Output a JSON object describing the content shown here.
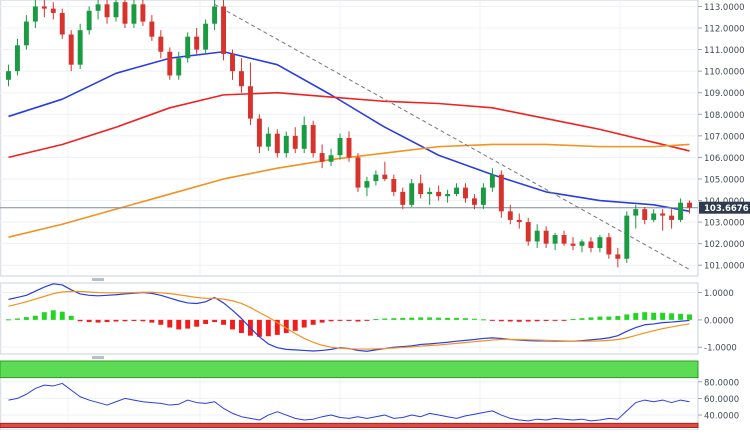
{
  "chart_data": [
    {
      "panel": "price",
      "type": "candlestick",
      "ylim": [
        100.5,
        113.3
      ],
      "y_ticks": [
        "113.0000",
        "112.0000",
        "111.0000",
        "110.0000",
        "109.0000",
        "108.0000",
        "107.0000",
        "106.0000",
        "105.0000",
        "104.0000",
        "103.0000",
        "102.0000",
        "101.0000"
      ],
      "y_tick_values": [
        113,
        112,
        111,
        110,
        109,
        108,
        107,
        106,
        105,
        104,
        103,
        102,
        101
      ],
      "current_price_label": "103.6676",
      "current_price": 103.6676,
      "grid": true,
      "candles": [
        {
          "o": 109.6,
          "h": 110.3,
          "l": 109.3,
          "c": 110.0
        },
        {
          "o": 110.0,
          "h": 111.5,
          "l": 109.8,
          "c": 111.2
        },
        {
          "o": 111.2,
          "h": 112.6,
          "l": 111.0,
          "c": 112.3
        },
        {
          "o": 112.3,
          "h": 113.3,
          "l": 112.0,
          "c": 113.0
        },
        {
          "o": 113.0,
          "h": 113.3,
          "l": 112.5,
          "c": 112.9
        },
        {
          "o": 112.9,
          "h": 113.2,
          "l": 112.4,
          "c": 112.7
        },
        {
          "o": 112.7,
          "h": 112.9,
          "l": 111.5,
          "c": 111.7
        },
        {
          "o": 111.7,
          "h": 111.9,
          "l": 110.0,
          "c": 110.3
        },
        {
          "o": 110.3,
          "h": 112.2,
          "l": 110.1,
          "c": 111.9
        },
        {
          "o": 111.9,
          "h": 113.0,
          "l": 111.7,
          "c": 112.8
        },
        {
          "o": 112.8,
          "h": 113.3,
          "l": 112.4,
          "c": 113.1
        },
        {
          "o": 113.1,
          "h": 113.3,
          "l": 112.2,
          "c": 112.5
        },
        {
          "o": 112.5,
          "h": 113.3,
          "l": 112.3,
          "c": 113.2
        },
        {
          "o": 113.2,
          "h": 113.3,
          "l": 112.0,
          "c": 112.2
        },
        {
          "o": 112.2,
          "h": 113.3,
          "l": 112.0,
          "c": 113.1
        },
        {
          "o": 113.1,
          "h": 113.3,
          "l": 112.1,
          "c": 112.3
        },
        {
          "o": 112.3,
          "h": 112.6,
          "l": 111.4,
          "c": 111.6
        },
        {
          "o": 111.6,
          "h": 111.9,
          "l": 110.6,
          "c": 110.9
        },
        {
          "o": 110.9,
          "h": 111.1,
          "l": 109.6,
          "c": 109.8
        },
        {
          "o": 109.8,
          "h": 110.9,
          "l": 109.6,
          "c": 110.6
        },
        {
          "o": 110.6,
          "h": 111.8,
          "l": 110.4,
          "c": 111.6
        },
        {
          "o": 111.6,
          "h": 112.0,
          "l": 110.8,
          "c": 111.0
        },
        {
          "o": 111.0,
          "h": 112.4,
          "l": 110.8,
          "c": 112.2
        },
        {
          "o": 112.2,
          "h": 113.3,
          "l": 111.9,
          "c": 113.0
        },
        {
          "o": 113.0,
          "h": 113.3,
          "l": 110.5,
          "c": 110.8
        },
        {
          "o": 110.8,
          "h": 111.0,
          "l": 109.6,
          "c": 110.0
        },
        {
          "o": 110.0,
          "h": 110.6,
          "l": 109.0,
          "c": 109.3
        },
        {
          "o": 109.3,
          "h": 110.4,
          "l": 107.5,
          "c": 107.8
        },
        {
          "o": 107.8,
          "h": 108.0,
          "l": 106.2,
          "c": 106.5
        },
        {
          "o": 106.5,
          "h": 107.4,
          "l": 106.3,
          "c": 107.1
        },
        {
          "o": 107.1,
          "h": 107.3,
          "l": 106.0,
          "c": 106.2
        },
        {
          "o": 106.2,
          "h": 107.2,
          "l": 106.0,
          "c": 107.0
        },
        {
          "o": 107.0,
          "h": 107.4,
          "l": 106.2,
          "c": 106.4
        },
        {
          "o": 106.4,
          "h": 107.9,
          "l": 106.2,
          "c": 107.5
        },
        {
          "o": 107.5,
          "h": 107.7,
          "l": 106.0,
          "c": 106.2
        },
        {
          "o": 106.2,
          "h": 106.6,
          "l": 105.5,
          "c": 105.8
        },
        {
          "o": 105.8,
          "h": 106.4,
          "l": 105.6,
          "c": 106.1
        },
        {
          "o": 106.1,
          "h": 107.1,
          "l": 105.9,
          "c": 106.9
        },
        {
          "o": 106.9,
          "h": 107.2,
          "l": 105.8,
          "c": 106.0
        },
        {
          "o": 106.0,
          "h": 106.2,
          "l": 104.4,
          "c": 104.6
        },
        {
          "o": 104.6,
          "h": 105.1,
          "l": 104.2,
          "c": 104.9
        },
        {
          "o": 104.9,
          "h": 105.4,
          "l": 104.7,
          "c": 105.2
        },
        {
          "o": 105.2,
          "h": 105.8,
          "l": 104.9,
          "c": 105.0
        },
        {
          "o": 105.0,
          "h": 105.2,
          "l": 104.2,
          "c": 104.4
        },
        {
          "o": 104.4,
          "h": 104.6,
          "l": 103.6,
          "c": 103.8
        },
        {
          "o": 103.8,
          "h": 105.0,
          "l": 103.7,
          "c": 104.8
        },
        {
          "o": 104.8,
          "h": 105.2,
          "l": 104.1,
          "c": 104.3
        },
        {
          "o": 104.3,
          "h": 104.6,
          "l": 103.8,
          "c": 104.4
        },
        {
          "o": 104.4,
          "h": 104.7,
          "l": 104.0,
          "c": 104.2
        },
        {
          "o": 104.2,
          "h": 104.5,
          "l": 103.9,
          "c": 104.3
        },
        {
          "o": 104.3,
          "h": 104.8,
          "l": 104.2,
          "c": 104.6
        },
        {
          "o": 104.6,
          "h": 104.8,
          "l": 103.9,
          "c": 104.1
        },
        {
          "o": 104.1,
          "h": 104.3,
          "l": 103.6,
          "c": 103.8
        },
        {
          "o": 103.8,
          "h": 104.8,
          "l": 103.6,
          "c": 104.6
        },
        {
          "o": 104.6,
          "h": 105.5,
          "l": 104.4,
          "c": 105.2
        },
        {
          "o": 105.2,
          "h": 105.4,
          "l": 103.2,
          "c": 103.5
        },
        {
          "o": 103.5,
          "h": 103.8,
          "l": 102.9,
          "c": 103.1
        },
        {
          "o": 103.1,
          "h": 103.4,
          "l": 102.7,
          "c": 103.0
        },
        {
          "o": 103.0,
          "h": 103.2,
          "l": 101.9,
          "c": 102.1
        },
        {
          "o": 102.1,
          "h": 102.9,
          "l": 101.8,
          "c": 102.6
        },
        {
          "o": 102.6,
          "h": 102.8,
          "l": 101.8,
          "c": 102.0
        },
        {
          "o": 102.0,
          "h": 102.5,
          "l": 101.7,
          "c": 102.4
        },
        {
          "o": 102.4,
          "h": 102.6,
          "l": 101.9,
          "c": 102.0
        },
        {
          "o": 102.0,
          "h": 102.3,
          "l": 101.7,
          "c": 101.9
        },
        {
          "o": 101.9,
          "h": 102.2,
          "l": 101.6,
          "c": 102.1
        },
        {
          "o": 102.1,
          "h": 102.3,
          "l": 101.6,
          "c": 101.8
        },
        {
          "o": 101.8,
          "h": 102.4,
          "l": 101.6,
          "c": 102.3
        },
        {
          "o": 102.3,
          "h": 102.5,
          "l": 101.3,
          "c": 101.5
        },
        {
          "o": 101.5,
          "h": 101.8,
          "l": 100.9,
          "c": 101.3
        },
        {
          "o": 101.3,
          "h": 103.5,
          "l": 101.1,
          "c": 103.3
        },
        {
          "o": 103.3,
          "h": 103.8,
          "l": 102.7,
          "c": 103.6
        },
        {
          "o": 103.6,
          "h": 103.7,
          "l": 102.9,
          "c": 103.1
        },
        {
          "o": 103.1,
          "h": 103.6,
          "l": 103.0,
          "c": 103.4
        },
        {
          "o": 103.4,
          "h": 103.6,
          "l": 102.6,
          "c": 103.3
        },
        {
          "o": 103.3,
          "h": 103.6,
          "l": 102.7,
          "c": 103.1
        },
        {
          "o": 103.1,
          "h": 104.1,
          "l": 103.0,
          "c": 103.9
        },
        {
          "o": 103.9,
          "h": 104.0,
          "l": 103.4,
          "c": 103.67
        }
      ],
      "moving_averages": [
        {
          "name": "",
          "color": "#2a3ee0",
          "x": [
            0,
            6,
            12,
            18,
            24,
            30,
            36,
            42,
            48,
            54,
            60,
            66,
            72,
            76
          ],
          "y": [
            107.9,
            108.7,
            109.9,
            110.6,
            110.9,
            110.3,
            108.9,
            107.4,
            106.1,
            105.2,
            104.4,
            104.0,
            103.8,
            103.5
          ]
        },
        {
          "name": "",
          "color": "#f22020",
          "x": [
            0,
            6,
            12,
            18,
            24,
            30,
            36,
            42,
            48,
            54,
            60,
            66,
            72,
            76
          ],
          "y": [
            106.0,
            106.6,
            107.4,
            108.3,
            108.9,
            109.0,
            108.8,
            108.6,
            108.5,
            108.3,
            107.8,
            107.3,
            106.7,
            106.3
          ]
        },
        {
          "name": "",
          "color": "#f5911e",
          "x": [
            0,
            6,
            12,
            18,
            24,
            30,
            36,
            42,
            48,
            54,
            60,
            66,
            72,
            76
          ],
          "y": [
            102.3,
            102.9,
            103.6,
            104.3,
            105.0,
            105.5,
            105.9,
            106.2,
            106.5,
            106.6,
            106.6,
            106.5,
            106.5,
            106.6
          ]
        }
      ],
      "trendline": {
        "x": [
          23,
          76
        ],
        "y": [
          113.1,
          100.8
        ],
        "style": "dashed",
        "color": "#777777"
      },
      "horizontal_line": {
        "y": 103.6676,
        "color": "#7a8aa0"
      }
    },
    {
      "panel": "macd",
      "type": "line+bar",
      "ylim": [
        -1.25,
        1.35
      ],
      "y_ticks": [
        "1.0000",
        "0.0000",
        "-1.0000"
      ],
      "y_tick_values": [
        1,
        0,
        -1
      ],
      "grid": true,
      "histogram": [
        0.02,
        0.05,
        0.1,
        0.15,
        0.28,
        0.35,
        0.3,
        0.15,
        -0.05,
        -0.08,
        -0.1,
        -0.08,
        -0.06,
        -0.05,
        -0.04,
        -0.05,
        -0.1,
        -0.18,
        -0.28,
        -0.35,
        -0.32,
        -0.25,
        -0.15,
        -0.08,
        -0.18,
        -0.35,
        -0.48,
        -0.58,
        -0.62,
        -0.6,
        -0.55,
        -0.48,
        -0.4,
        -0.28,
        -0.18,
        -0.1,
        -0.05,
        -0.03,
        -0.04,
        -0.06,
        -0.02,
        0.03,
        0.05,
        0.06,
        0.07,
        0.08,
        0.09,
        0.09,
        0.08,
        0.07,
        0.07,
        0.06,
        0.04,
        0.02,
        -0.02,
        -0.05,
        -0.06,
        -0.07,
        -0.06,
        -0.05,
        -0.04,
        -0.03,
        -0.02,
        0.03,
        0.06,
        0.09,
        0.12,
        0.12,
        0.14,
        0.2,
        0.25,
        0.28,
        0.26,
        0.26,
        0.24,
        0.22,
        0.2
      ],
      "series": [
        {
          "name": "",
          "color": "#2a3ee0",
          "values": [
            0.75,
            0.82,
            0.9,
            1.05,
            1.2,
            1.32,
            1.28,
            1.1,
            0.95,
            0.9,
            0.88,
            0.9,
            0.92,
            0.95,
            0.98,
            1.0,
            0.97,
            0.9,
            0.8,
            0.7,
            0.62,
            0.6,
            0.66,
            0.82,
            0.62,
            0.35,
            0.05,
            -0.3,
            -0.62,
            -0.88,
            -1.02,
            -1.08,
            -1.1,
            -1.12,
            -1.14,
            -1.12,
            -1.08,
            -1.02,
            -1.05,
            -1.12,
            -1.15,
            -1.1,
            -1.05,
            -1.0,
            -0.98,
            -0.95,
            -0.9,
            -0.88,
            -0.85,
            -0.82,
            -0.78,
            -0.75,
            -0.72,
            -0.68,
            -0.66,
            -0.68,
            -0.72,
            -0.74,
            -0.76,
            -0.77,
            -0.77,
            -0.78,
            -0.78,
            -0.78,
            -0.76,
            -0.73,
            -0.7,
            -0.66,
            -0.58,
            -0.42,
            -0.28,
            -0.18,
            -0.15,
            -0.1,
            -0.08,
            -0.05,
            -0.02
          ]
        },
        {
          "name": "",
          "color": "#f5911e",
          "values": [
            0.5,
            0.58,
            0.66,
            0.76,
            0.86,
            0.96,
            1.02,
            1.04,
            1.04,
            1.02,
            1.0,
            0.99,
            0.99,
            0.99,
            1.0,
            1.01,
            1.01,
            0.99,
            0.96,
            0.92,
            0.87,
            0.82,
            0.79,
            0.79,
            0.76,
            0.7,
            0.6,
            0.45,
            0.27,
            0.1,
            -0.1,
            -0.3,
            -0.5,
            -0.68,
            -0.82,
            -0.93,
            -1.0,
            -1.04,
            -1.06,
            -1.07,
            -1.07,
            -1.06,
            -1.05,
            -1.03,
            -1.01,
            -0.99,
            -0.96,
            -0.94,
            -0.92,
            -0.89,
            -0.86,
            -0.83,
            -0.8,
            -0.77,
            -0.74,
            -0.72,
            -0.72,
            -0.72,
            -0.73,
            -0.74,
            -0.75,
            -0.76,
            -0.77,
            -0.78,
            -0.78,
            -0.78,
            -0.77,
            -0.75,
            -0.72,
            -0.66,
            -0.57,
            -0.48,
            -0.4,
            -0.32,
            -0.26,
            -0.2,
            -0.15
          ]
        }
      ]
    },
    {
      "panel": "rsi",
      "type": "line",
      "ylim": [
        22,
        105
      ],
      "y_ticks": [
        "80.0000",
        "60.0000",
        "40.0000"
      ],
      "y_tick_values": [
        80,
        60,
        40
      ],
      "overbought_zone": [
        85,
        105
      ],
      "oversold_zone": [
        25,
        30
      ],
      "series": [
        {
          "name": "",
          "color": "#2a3ee0",
          "values": [
            58,
            60,
            65,
            72,
            76,
            75,
            78,
            70,
            62,
            58,
            55,
            52,
            56,
            60,
            58,
            56,
            55,
            54,
            52,
            53,
            58,
            55,
            54,
            56,
            48,
            42,
            38,
            36,
            34,
            40,
            44,
            40,
            36,
            34,
            35,
            38,
            40,
            37,
            36,
            38,
            36,
            38,
            40,
            36,
            37,
            40,
            38,
            42,
            40,
            38,
            36,
            39,
            41,
            43,
            45,
            40,
            36,
            34,
            33,
            35,
            34,
            36,
            35,
            34,
            35,
            33,
            34,
            36,
            35,
            45,
            55,
            58,
            56,
            58,
            55,
            58,
            56
          ]
        }
      ]
    }
  ]
}
